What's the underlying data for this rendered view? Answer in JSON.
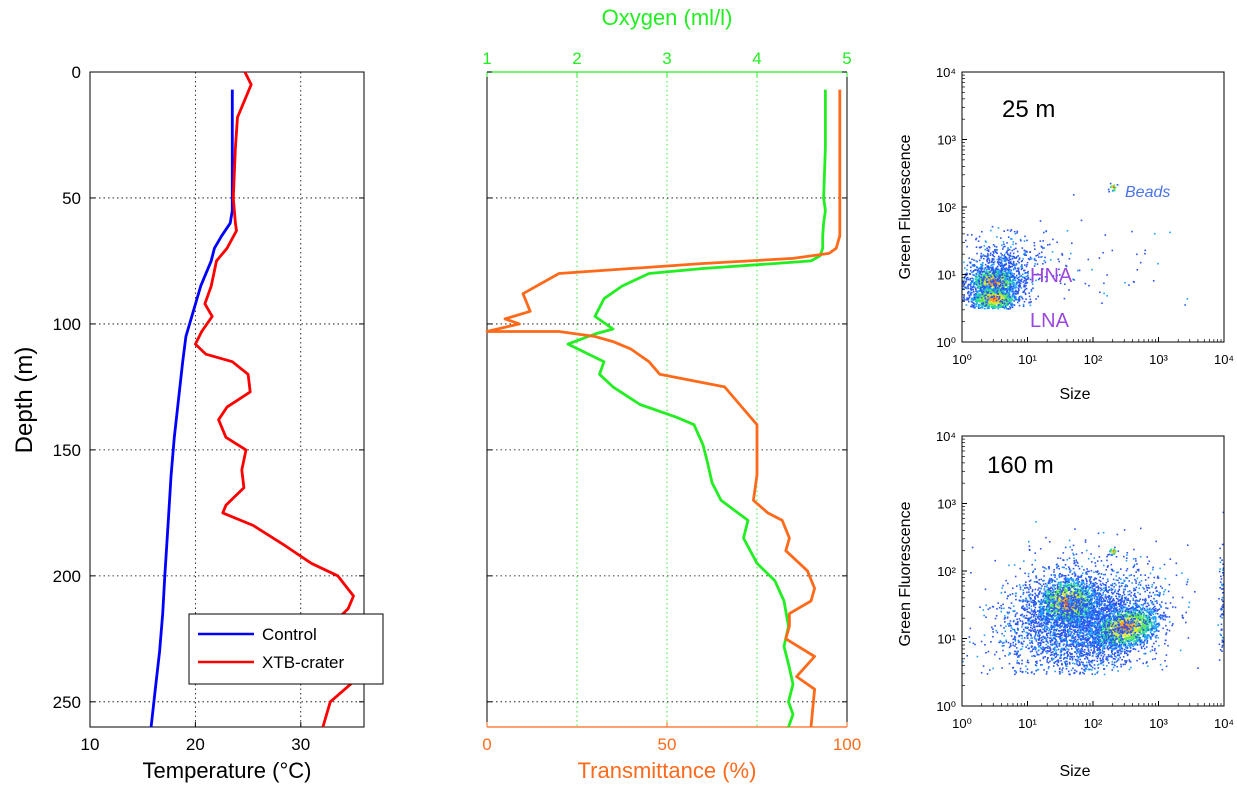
{
  "chart_data": [
    {
      "type": "line",
      "panel": "temperature",
      "xlabel": "Temperature (°C)",
      "ylabel": "Depth (m)",
      "xlim": [
        10,
        36
      ],
      "ylim": [
        260,
        0
      ],
      "y_reversed": true,
      "grid": true,
      "xticks": [
        "10",
        "20",
        "30"
      ],
      "yticks": [
        "0",
        "50",
        "100",
        "150",
        "200",
        "250"
      ],
      "legend_position": "lower-center",
      "colors": {
        "control": "#0000ff",
        "crater": "#ff0000"
      },
      "series": [
        {
          "name": "Control",
          "x": [
            23.5,
            23.5,
            23.5,
            23.3,
            22.5,
            21.8,
            21.5,
            20.5,
            19.8,
            19.1,
            18.8,
            18.4,
            18.0,
            17.7,
            17.4,
            17.1,
            16.9,
            16.6,
            16.2,
            15.8
          ],
          "y": [
            7,
            40,
            55,
            60,
            65,
            70,
            75,
            85,
            95,
            105,
            115,
            130,
            145,
            160,
            180,
            200,
            215,
            230,
            245,
            260
          ]
        },
        {
          "name": "XTB-crater",
          "x": [
            24.7,
            25.3,
            24.0,
            23.8,
            23.6,
            23.8,
            23.9,
            23.0,
            22.0,
            21.5,
            20.9,
            21.6,
            20.6,
            20.0,
            21.0,
            23.5,
            25.0,
            25.2,
            23.0,
            22.2,
            22.9,
            24.8,
            24.4,
            24.6,
            22.9,
            22.6,
            25.5,
            28.5,
            31.0,
            33.5,
            35.0,
            34.5,
            32.8,
            34.2,
            35.3,
            35.0,
            32.8,
            32.1
          ],
          "y": [
            0,
            5,
            18,
            30,
            50,
            60,
            63,
            70,
            75,
            85,
            92,
            97,
            103,
            108,
            112,
            115,
            120,
            127,
            133,
            138,
            145,
            150,
            158,
            165,
            172,
            175,
            180,
            188,
            195,
            200,
            208,
            213,
            220,
            228,
            235,
            242,
            250,
            260
          ]
        }
      ]
    },
    {
      "type": "line",
      "panel": "oxygen-transmittance",
      "xlabel_bottom": "Transmittance (%)",
      "xlabel_top": "Oxygen (ml/l)",
      "ylim": [
        260,
        0
      ],
      "y_reversed": true,
      "xlim_bottom": [
        0,
        100
      ],
      "xlim_top": [
        1,
        5
      ],
      "xticks_bottom": [
        "0",
        "50",
        "100"
      ],
      "xticks_top": [
        "1",
        "2",
        "3",
        "4",
        "5"
      ],
      "colors": {
        "oxygen": "#22ee22",
        "transmittance": "#ff6a1a"
      },
      "series": [
        {
          "name": "Oxygen",
          "axis": "top",
          "x": [
            4.76,
            4.76,
            4.74,
            4.76,
            4.74,
            4.73,
            4.73,
            4.7,
            4.6,
            4.2,
            3.4,
            2.8,
            2.5,
            2.3,
            2.2,
            2.4,
            2.2,
            1.9,
            2.3,
            2.25,
            2.4,
            2.7,
            3.1,
            3.3,
            3.4,
            3.45,
            3.5,
            3.6,
            3.9,
            3.85,
            4.0,
            4.2,
            4.3,
            4.35,
            4.3,
            4.35,
            4.4,
            4.35,
            4.4,
            4.35
          ],
          "y": [
            7,
            30,
            50,
            55,
            60,
            65,
            70,
            73,
            75,
            76,
            78,
            80,
            85,
            90,
            97,
            102,
            104,
            108,
            115,
            120,
            125,
            132,
            137,
            140,
            148,
            155,
            163,
            170,
            178,
            185,
            195,
            202,
            210,
            220,
            228,
            235,
            243,
            250,
            255,
            260
          ]
        },
        {
          "name": "Transmittance",
          "axis": "bottom",
          "x": [
            98,
            98,
            98,
            98,
            97,
            95,
            85,
            60,
            20,
            10,
            12,
            5,
            9,
            0,
            20,
            30,
            35,
            40,
            45,
            48,
            66,
            72,
            75,
            75,
            75,
            74,
            78,
            82,
            84,
            83,
            89,
            91,
            90,
            84,
            84,
            83,
            91,
            86,
            91,
            90
          ],
          "y": [
            7,
            40,
            60,
            65,
            70,
            72,
            74,
            76,
            80,
            88,
            95,
            98,
            100,
            103,
            103,
            105,
            107,
            110,
            115,
            120,
            125,
            135,
            140,
            150,
            160,
            170,
            175,
            178,
            185,
            190,
            198,
            205,
            210,
            215,
            220,
            225,
            232,
            240,
            245,
            260
          ]
        }
      ]
    },
    {
      "type": "scatter",
      "panel": "cytogram-25m",
      "label": "25 m",
      "xlabel": "Size",
      "ylabel": "Green Fluorescence",
      "log_scale": true,
      "xlim": [
        1,
        10000
      ],
      "ylim": [
        1,
        10000
      ],
      "xticks": [
        "10⁰",
        "10¹",
        "10²",
        "10³",
        "10⁴"
      ],
      "yticks": [
        "10⁰",
        "10¹",
        "10²",
        "10³",
        "10⁴"
      ],
      "annotations": [
        "Beads",
        "HNA",
        "LNA"
      ],
      "clusters": [
        {
          "name": "HNA",
          "x": 3.0,
          "y": 8
        },
        {
          "name": "LNA",
          "x": 3.0,
          "y": 4.5
        },
        {
          "name": "Beads",
          "x": 200,
          "y": 200
        }
      ]
    },
    {
      "type": "scatter",
      "panel": "cytogram-160m",
      "label": "160 m",
      "xlabel": "Size",
      "ylabel": "Green Fluorescence",
      "log_scale": true,
      "xlim": [
        1,
        10000
      ],
      "ylim": [
        1,
        10000
      ],
      "xticks": [
        "10⁰",
        "10¹",
        "10²",
        "10³",
        "10⁴"
      ],
      "yticks": [
        "10⁰",
        "10¹",
        "10²",
        "10³",
        "10⁴"
      ],
      "clusters": [
        {
          "x": 40,
          "y": 35
        },
        {
          "x": 300,
          "y": 15
        },
        {
          "x": 200,
          "y": 200
        }
      ]
    }
  ]
}
